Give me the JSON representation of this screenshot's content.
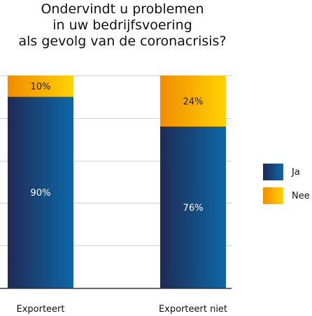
{
  "chart_data": {
    "type": "bar",
    "stacked": true,
    "title_lines": [
      "Ondervindt u problemen",
      "in uw bedrijfsvoering",
      "als gevolg van de coronacrisis?"
    ],
    "categories": [
      "Exporteert",
      "Exporteert niet"
    ],
    "series": [
      {
        "name": "Ja",
        "values": [
          90,
          76
        ],
        "labels": [
          "90%",
          "76%"
        ],
        "color_start": "#1f2a55",
        "color_end": "#0d68a8"
      },
      {
        "name": "Nee",
        "values": [
          10,
          24
        ],
        "labels": [
          "10%",
          "24%"
        ],
        "color_start": "#f28c00",
        "color_end": "#ffd200"
      }
    ],
    "ylim": [
      0,
      100
    ],
    "grid": true,
    "legend_position": "right"
  }
}
